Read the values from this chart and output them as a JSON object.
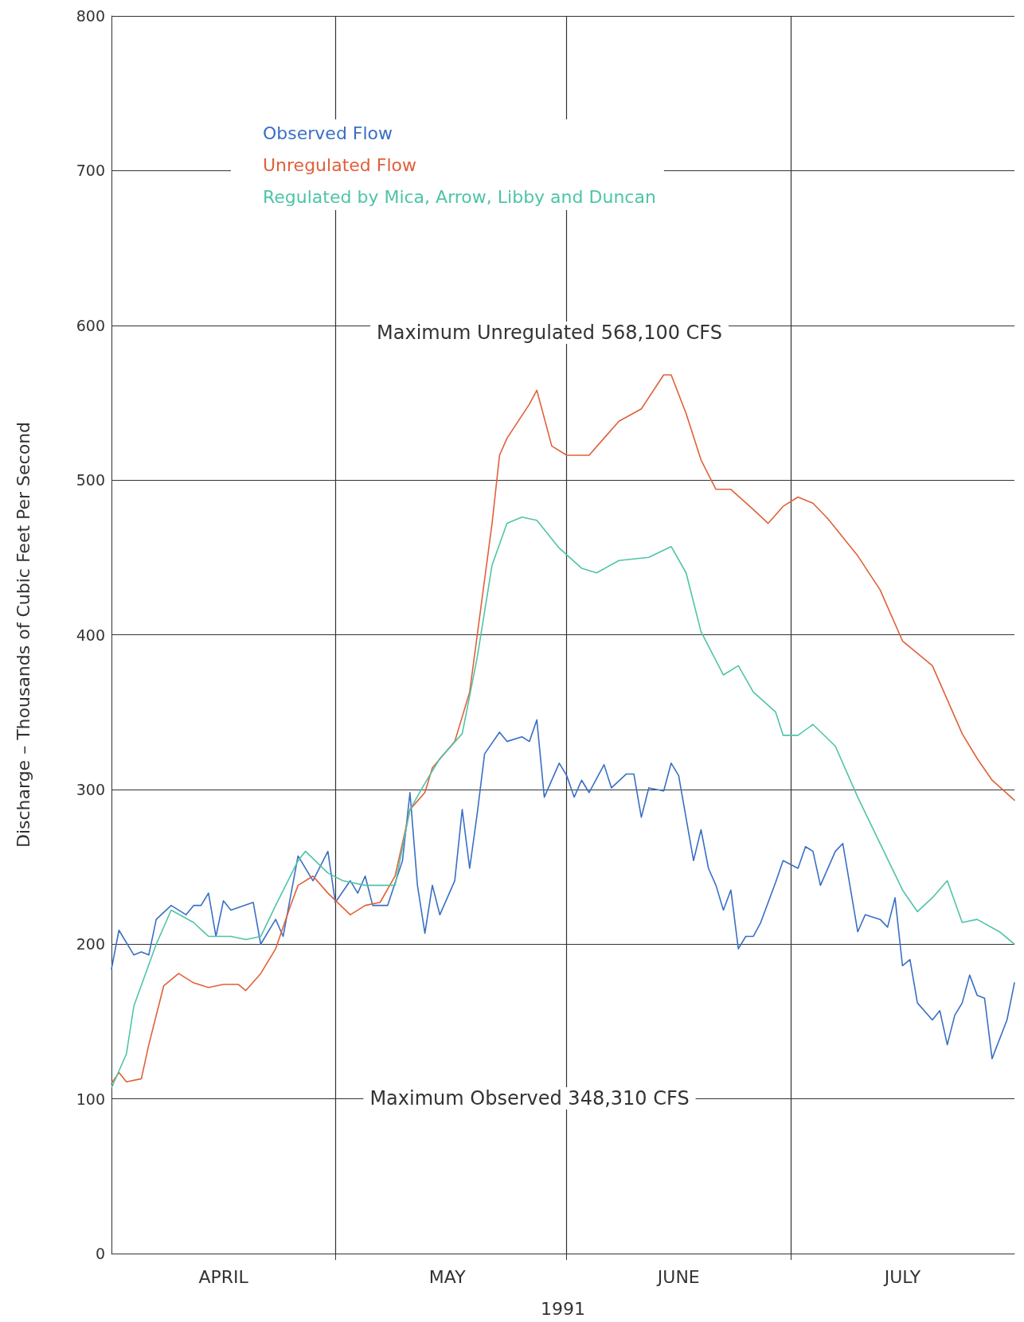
{
  "chart_data": {
    "type": "line",
    "xlabel": "1991",
    "ylabel": "Discharge – Thousands of Cubic Feet Per Second",
    "xlim": [
      "1991-04-01",
      "1991-07-31"
    ],
    "ylim": [
      0,
      800
    ],
    "yticks": [
      0,
      100,
      200,
      300,
      400,
      500,
      600,
      700,
      800
    ],
    "xticks": [
      {
        "value": "1991-04-16",
        "label": "APRIL"
      },
      {
        "value": "1991-05-01",
        "label": null
      },
      {
        "value": "1991-05-16",
        "label": "MAY"
      },
      {
        "value": "1991-06-01",
        "label": null
      },
      {
        "value": "1991-06-16",
        "label": "JUNE"
      },
      {
        "value": "1991-07-01",
        "label": null
      },
      {
        "value": "1991-07-16",
        "label": "JULY"
      }
    ],
    "grid": true,
    "legend": "top left",
    "marker": "none",
    "line_style": "solid",
    "annotations": [
      "Maximum Unregulated 568,100 CFS",
      "Maximum Observed 348,310 CFS"
    ],
    "series": [
      {
        "name": "Observed Flow",
        "color": "#3a6fc4",
        "x": [
          "1991-04-01",
          "1991-04-02",
          "1991-04-04",
          "1991-04-05",
          "1991-04-06",
          "1991-04-07",
          "1991-04-09",
          "1991-04-11",
          "1991-04-12",
          "1991-04-13",
          "1991-04-14",
          "1991-04-15",
          "1991-04-16",
          "1991-04-17",
          "1991-04-20",
          "1991-04-21",
          "1991-04-23",
          "1991-04-24",
          "1991-04-26",
          "1991-04-28",
          "1991-04-30",
          "1991-05-01",
          "1991-05-03",
          "1991-05-04",
          "1991-05-05",
          "1991-05-06",
          "1991-05-08",
          "1991-05-10",
          "1991-05-11",
          "1991-05-12",
          "1991-05-13",
          "1991-05-14",
          "1991-05-15",
          "1991-05-17",
          "1991-05-18",
          "1991-05-19",
          "1991-05-20",
          "1991-05-21",
          "1991-05-23",
          "1991-05-24",
          "1991-05-26",
          "1991-05-27",
          "1991-05-28",
          "1991-05-29",
          "1991-05-31",
          "1991-06-01",
          "1991-06-02",
          "1991-06-03",
          "1991-06-04",
          "1991-06-06",
          "1991-06-07",
          "1991-06-09",
          "1991-06-10",
          "1991-06-11",
          "1991-06-12",
          "1991-06-14",
          "1991-06-15",
          "1991-06-16",
          "1991-06-18",
          "1991-06-19",
          "1991-06-20",
          "1991-06-21",
          "1991-06-22",
          "1991-06-23",
          "1991-06-24",
          "1991-06-25",
          "1991-06-26",
          "1991-06-27",
          "1991-06-28",
          "1991-06-29",
          "1991-06-30",
          "1991-07-02",
          "1991-07-03",
          "1991-07-04",
          "1991-07-05",
          "1991-07-07",
          "1991-07-08",
          "1991-07-10",
          "1991-07-11",
          "1991-07-13",
          "1991-07-14",
          "1991-07-15",
          "1991-07-16",
          "1991-07-17",
          "1991-07-18",
          "1991-07-20",
          "1991-07-21",
          "1991-07-22",
          "1991-07-23",
          "1991-07-24",
          "1991-07-25",
          "1991-07-26",
          "1991-07-27",
          "1991-07-28",
          "1991-07-30",
          "1991-07-31"
        ],
        "values": [
          184,
          209,
          193,
          195,
          193,
          216,
          225,
          219,
          225,
          225,
          233,
          205,
          228,
          222,
          227,
          200,
          216,
          205,
          257,
          241,
          260,
          227,
          241,
          233,
          244,
          225,
          225,
          254,
          298,
          238,
          207,
          238,
          219,
          241,
          287,
          249,
          284,
          323,
          337,
          331,
          334,
          331,
          345,
          295,
          317,
          309,
          295,
          306,
          298,
          316,
          301,
          310,
          310,
          282,
          301,
          299,
          317,
          309,
          254,
          274,
          249,
          238,
          222,
          235,
          197,
          205,
          205,
          214,
          227,
          240,
          254,
          249,
          263,
          260,
          238,
          260,
          265,
          208,
          219,
          216,
          211,
          230,
          186,
          190,
          162,
          151,
          157,
          135,
          154,
          162,
          180,
          167,
          165,
          126,
          151,
          175
        ]
      },
      {
        "name": "Unregulated Flow",
        "color": "#e0603a",
        "x": [
          "1991-04-01",
          "1991-04-02",
          "1991-04-03",
          "1991-04-05",
          "1991-04-06",
          "1991-04-08",
          "1991-04-10",
          "1991-04-12",
          "1991-04-14",
          "1991-04-16",
          "1991-04-18",
          "1991-04-19",
          "1991-04-21",
          "1991-04-23",
          "1991-04-25",
          "1991-04-26",
          "1991-04-28",
          "1991-04-30",
          "1991-05-03",
          "1991-05-05",
          "1991-05-07",
          "1991-05-09",
          "1991-05-11",
          "1991-05-13",
          "1991-05-14",
          "1991-05-17",
          "1991-05-19",
          "1991-05-22",
          "1991-05-23",
          "1991-05-24",
          "1991-05-27",
          "1991-05-28",
          "1991-05-30",
          "1991-06-01",
          "1991-06-04",
          "1991-06-06",
          "1991-06-08",
          "1991-06-11",
          "1991-06-14",
          "1991-06-15",
          "1991-06-17",
          "1991-06-19",
          "1991-06-21",
          "1991-06-23",
          "1991-06-26",
          "1991-06-28",
          "1991-06-30",
          "1991-07-02",
          "1991-07-04",
          "1991-07-06",
          "1991-07-10",
          "1991-07-13",
          "1991-07-16",
          "1991-07-20",
          "1991-07-22",
          "1991-07-24",
          "1991-07-26",
          "1991-07-28",
          "1991-07-31"
        ],
        "values": [
          110,
          117,
          111,
          113,
          135,
          173,
          181,
          175,
          172,
          174,
          174,
          170,
          181,
          197,
          225,
          238,
          244,
          233,
          219,
          225,
          227,
          244,
          287,
          298,
          314,
          331,
          363,
          472,
          516,
          527,
          549,
          558,
          522,
          516,
          516,
          527,
          538,
          546,
          568,
          568,
          543,
          513,
          494,
          494,
          481,
          472,
          483,
          489,
          485,
          475,
          451,
          429,
          396,
          380,
          358,
          336,
          320,
          306,
          293
        ]
      },
      {
        "name": "Regulated by Mica, Arrow, Libby and Duncan",
        "color": "#4fc4a8",
        "x": [
          "1991-04-01",
          "1991-04-03",
          "1991-04-04",
          "1991-04-07",
          "1991-04-09",
          "1991-04-12",
          "1991-04-14",
          "1991-04-17",
          "1991-04-19",
          "1991-04-21",
          "1991-04-23",
          "1991-04-26",
          "1991-04-27",
          "1991-04-30",
          "1991-05-02",
          "1991-05-05",
          "1991-05-09",
          "1991-05-11",
          "1991-05-13",
          "1991-05-15",
          "1991-05-18",
          "1991-05-20",
          "1991-05-22",
          "1991-05-24",
          "1991-05-26",
          "1991-05-28",
          "1991-05-31",
          "1991-06-03",
          "1991-06-05",
          "1991-06-08",
          "1991-06-12",
          "1991-06-15",
          "1991-06-17",
          "1991-06-19",
          "1991-06-22",
          "1991-06-24",
          "1991-06-26",
          "1991-06-29",
          "1991-06-30",
          "1991-07-02",
          "1991-07-04",
          "1991-07-07",
          "1991-07-10",
          "1991-07-13",
          "1991-07-16",
          "1991-07-18",
          "1991-07-20",
          "1991-07-22",
          "1991-07-24",
          "1991-07-26",
          "1991-07-29",
          "1991-07-31"
        ],
        "values": [
          107,
          129,
          160,
          200,
          222,
          214,
          205,
          205,
          203,
          205,
          225,
          254,
          260,
          246,
          241,
          238,
          238,
          287,
          304,
          320,
          336,
          385,
          445,
          472,
          476,
          474,
          456,
          443,
          440,
          448,
          450,
          457,
          440,
          402,
          374,
          380,
          363,
          350,
          335,
          335,
          342,
          328,
          295,
          265,
          235,
          221,
          230,
          241,
          214,
          216,
          208,
          200
        ]
      }
    ]
  }
}
